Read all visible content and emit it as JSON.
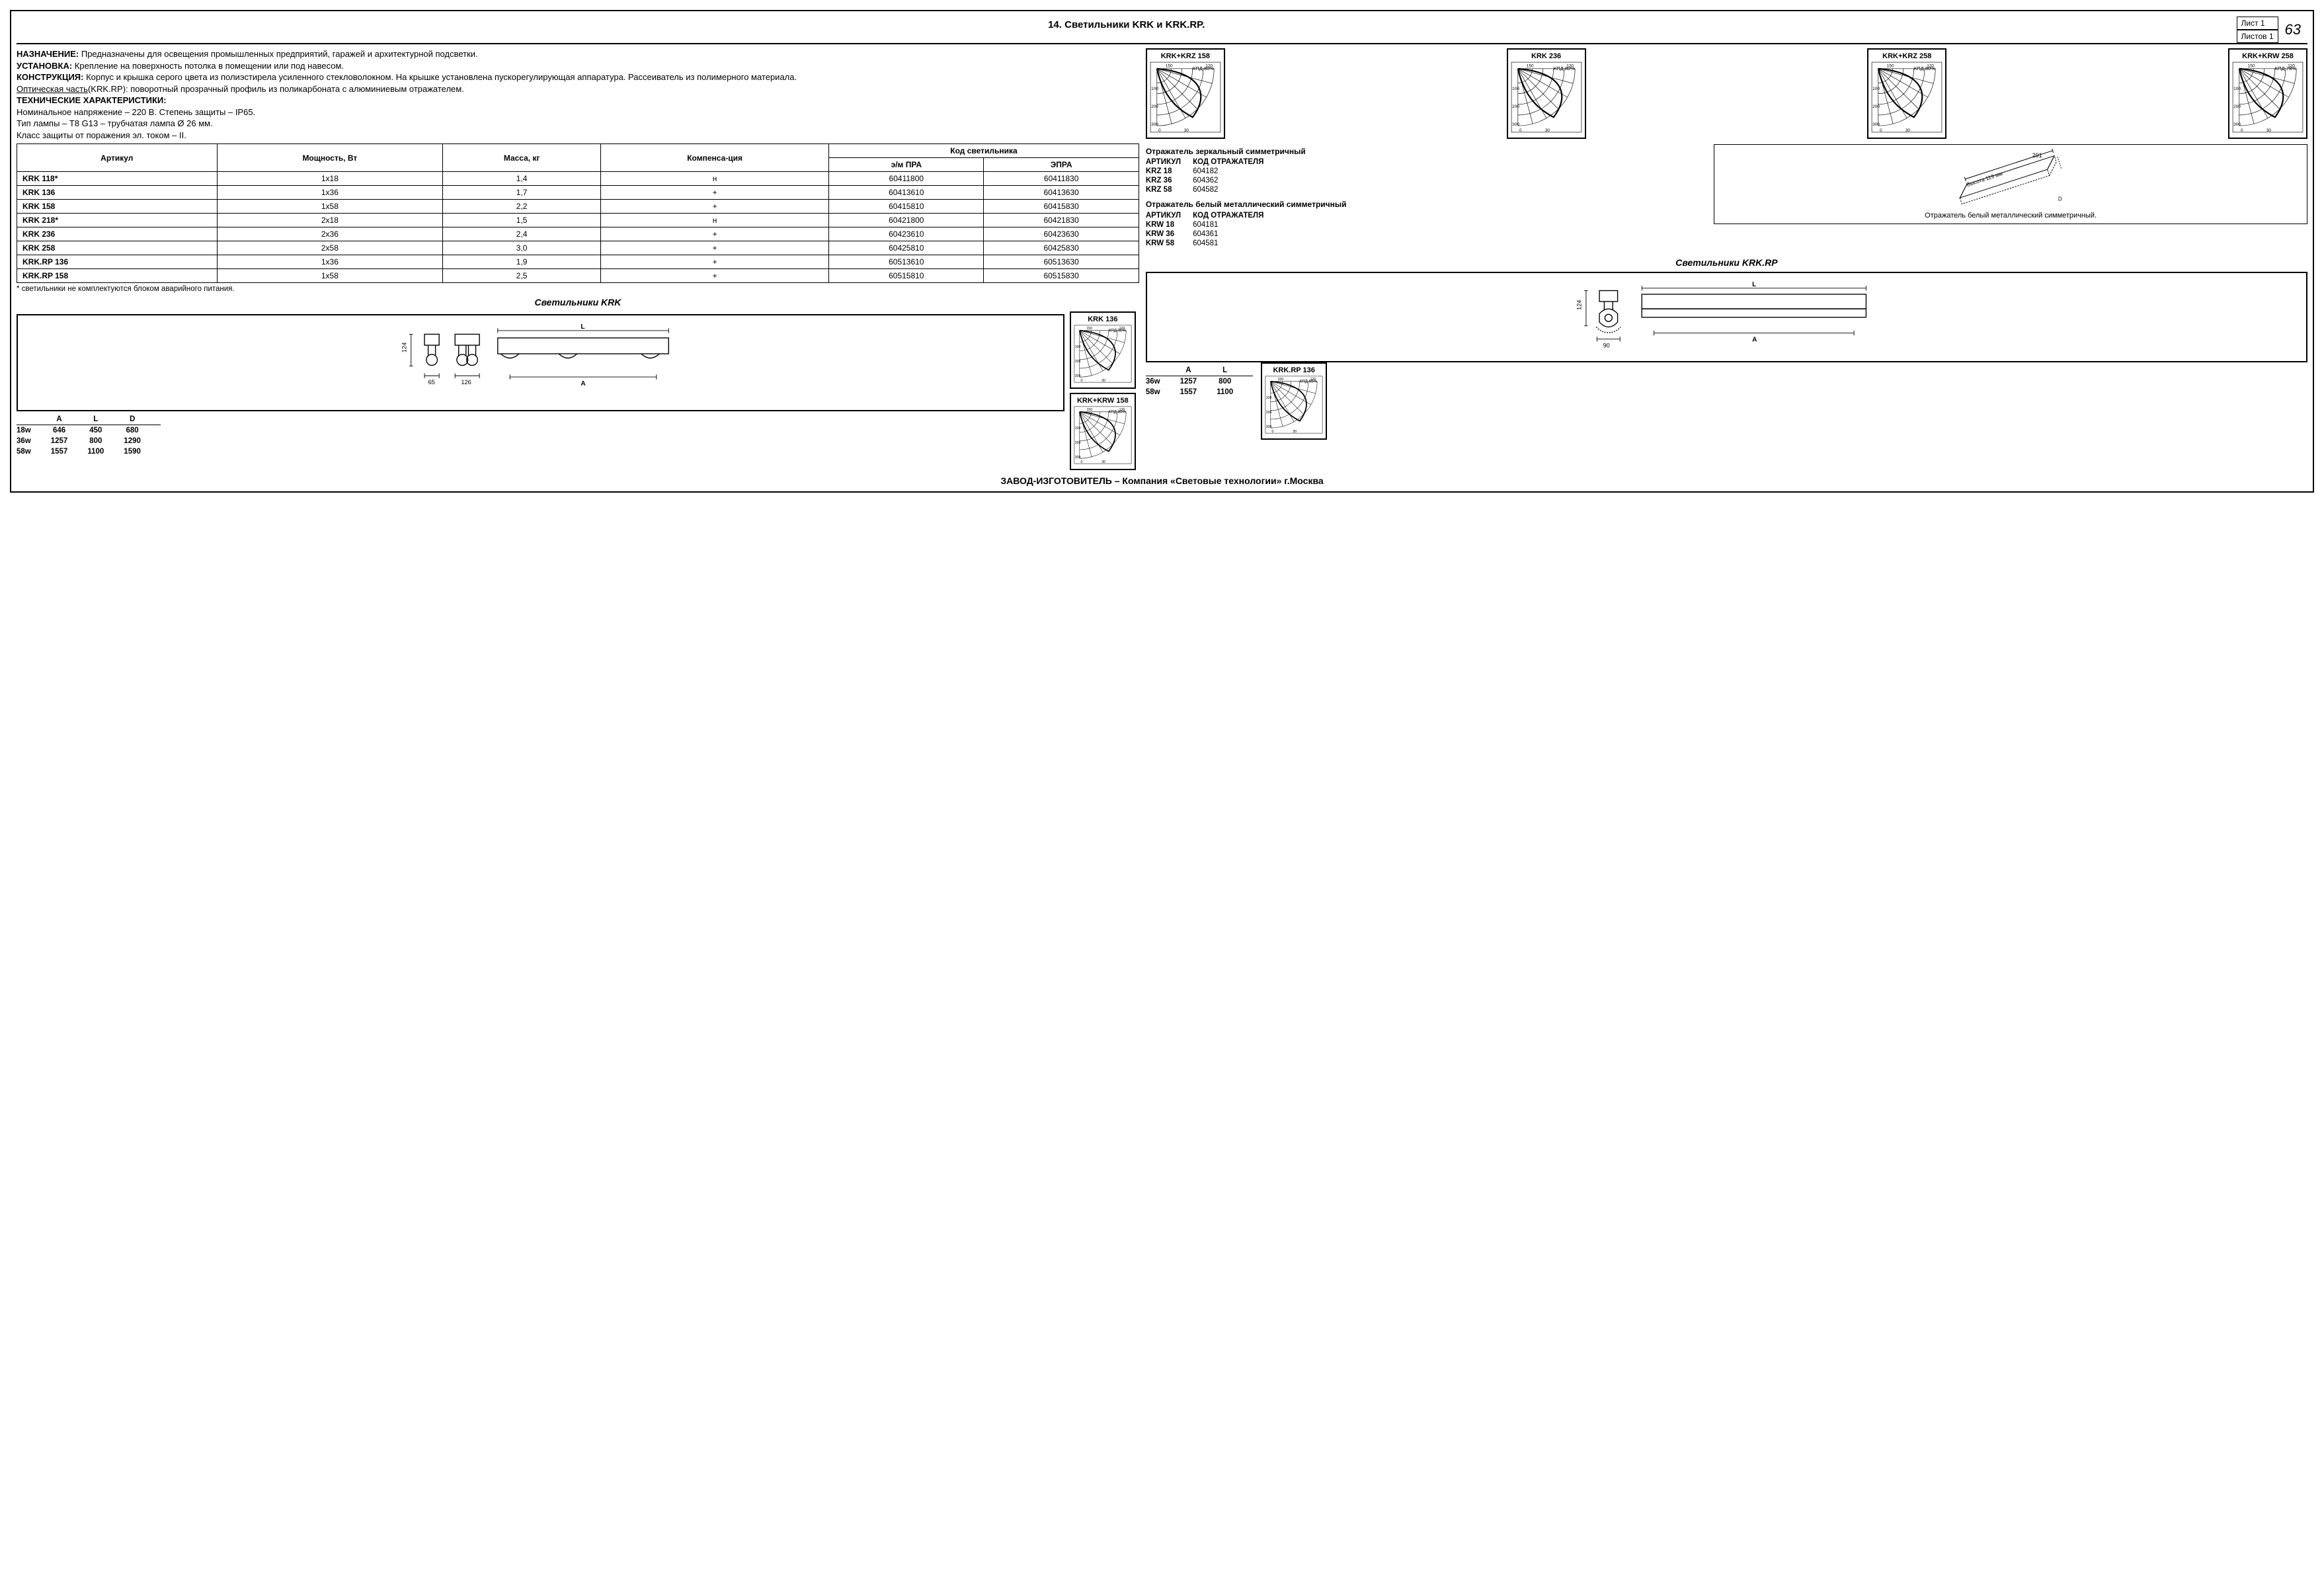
{
  "header": {
    "title": "14. Светильники KRK и KRK.RP.",
    "sheet_label_top": "Лист   1",
    "sheet_label_bot": "Листов   1",
    "page_number": "63"
  },
  "desc": {
    "l1b": "НАЗНАЧЕНИЕ:",
    "l1": " Предназначены для освещения промышленных предприятий, гаражей и архитектурной подсветки.",
    "l2b": "УСТАНОВКА:",
    "l2": " Крепление на поверхность потолка в помещении или под навесом.",
    "l3b": "КОНСТРУКЦИЯ:",
    "l3": " Корпус и крышка серого цвета из полиэстирела усиленного стекловолокном. На крышке установлена пускорегулирующая аппаратура. Рассеиватель из полимерного материала.",
    "l4u": "Оптическая часть",
    "l4": "(KRK.RP): поворотный прозрачный профиль из поликарбоната с алюминиевым отражателем.",
    "l5b": "ТЕХНИЧЕСКИЕ ХАРАКТЕРИСТИКИ:",
    "l6": "Номинальное напряжение – 220 В. Степень защиты – IP65.",
    "l7": "Тип лампы – T8 G13 – трубчатая лампа Ø 26 мм.",
    "l8": "Класс защиты от поражения эл. током – II."
  },
  "spec_headers": {
    "h0": "Артикул",
    "h1": "Мощность, Вт",
    "h2": "Масса, кг",
    "h3": "Компенса-ция",
    "h4": "Код светильника",
    "h4a": "э/м ПРА",
    "h4b": "ЭПРА"
  },
  "spec_rows": [
    {
      "a": "KRK 118*",
      "w": "1х18",
      "m": "1,4",
      "c": "н",
      "k1": "60411800",
      "k2": "60411830"
    },
    {
      "a": "KRK 136",
      "w": "1х36",
      "m": "1,7",
      "c": "+",
      "k1": "60413610",
      "k2": "60413630"
    },
    {
      "a": "KRK 158",
      "w": "1х58",
      "m": "2,2",
      "c": "+",
      "k1": "60415810",
      "k2": "60415830"
    },
    {
      "a": "KRK 218*",
      "w": "2х18",
      "m": "1,5",
      "c": "н",
      "k1": "60421800",
      "k2": "60421830"
    },
    {
      "a": "KRK 236",
      "w": "2х36",
      "m": "2,4",
      "c": "+",
      "k1": "60423610",
      "k2": "60423630"
    },
    {
      "a": "KRK 258",
      "w": "2х58",
      "m": "3,0",
      "c": "+",
      "k1": "60425810",
      "k2": "60425830"
    },
    {
      "a": "KRK.RP 136",
      "w": "1х36",
      "m": "1,9",
      "c": "+",
      "k1": "60513610",
      "k2": "60513630"
    },
    {
      "a": "KRK.RP 158",
      "w": "1х58",
      "m": "2,5",
      "c": "+",
      "k1": "60515810",
      "k2": "60515830"
    }
  ],
  "spec_note": "* светильники не комплектуются блоком аварийного питания.",
  "krk_title": "Светильники KRK",
  "rp_title": "Светильники KRK.RP",
  "photos_top": [
    {
      "label": "KRK+KRZ 158",
      "kpd": "КПД 80%"
    },
    {
      "label": "KRK 236",
      "kpd": "КПД 80%"
    },
    {
      "label": "KRK+KRZ 258",
      "kpd": "КПД 80%"
    },
    {
      "label": "KRK+KRW 258",
      "kpd": "КПД 78%"
    }
  ],
  "photos_side": [
    {
      "label": "KRK 136",
      "kpd": "КПД 90%"
    },
    {
      "label": "KRK+KRW 158",
      "kpd": "КПД 80%"
    }
  ],
  "photo_rp": {
    "label": "KRK.RP 136",
    "kpd": "КПД 65%"
  },
  "photo_axis": {
    "xticks": [
      "0",
      "30"
    ],
    "yticks": [
      "100",
      "200",
      "300"
    ],
    "top": [
      "150",
      "120"
    ]
  },
  "refl_mirror": {
    "title": "Отражатель зеркальный симметричный",
    "hdr_a": "АРТИКУЛ",
    "hdr_k": "КОД ОТРАЖАТЕЛЯ",
    "rows": [
      {
        "a": "KRZ 18",
        "k": "604182"
      },
      {
        "a": "KRZ 36",
        "k": "604362"
      },
      {
        "a": "KRZ 58",
        "k": "604582"
      }
    ]
  },
  "refl_white": {
    "title": "Отражатель белый металлический симметричный",
    "hdr_a": "АРТИКУЛ",
    "hdr_k": "КОД ОТРАЖАТЕЛЯ",
    "rows": [
      {
        "a": "KRW 18",
        "k": "604181"
      },
      {
        "a": "KRW 36",
        "k": "604361"
      },
      {
        "a": "KRW 58",
        "k": "604581"
      }
    ]
  },
  "refl_sketch": {
    "dim_w": "291",
    "dim_h": "Высота 119 мм",
    "dim_d": "D",
    "caption": "Отражатель белый металлический симметричный."
  },
  "krk_draw": {
    "h_124": "124",
    "w_65": "65",
    "w_126": "126",
    "L": "L",
    "A": "A"
  },
  "krk_dims": {
    "hdr": {
      "w": "",
      "a": "A",
      "l": "L",
      "d": "D"
    },
    "rows": [
      {
        "w": "18w",
        "a": "646",
        "l": "450",
        "d": "680"
      },
      {
        "w": "36w",
        "a": "1257",
        "l": "800",
        "d": "1290"
      },
      {
        "w": "58w",
        "a": "1557",
        "l": "1100",
        "d": "1590"
      }
    ]
  },
  "rp_draw": {
    "h_124": "124",
    "w_90": "90",
    "L": "L",
    "A": "A"
  },
  "rp_dims": {
    "hdr": {
      "w": "",
      "a": "A",
      "l": "L"
    },
    "rows": [
      {
        "w": "36w",
        "a": "1257",
        "l": "800"
      },
      {
        "w": "58w",
        "a": "1557",
        "l": "1100"
      }
    ]
  },
  "footer": "ЗАВОД-ИЗГОТОВИТЕЛЬ – Компания «Световые технологии» г.Москва"
}
